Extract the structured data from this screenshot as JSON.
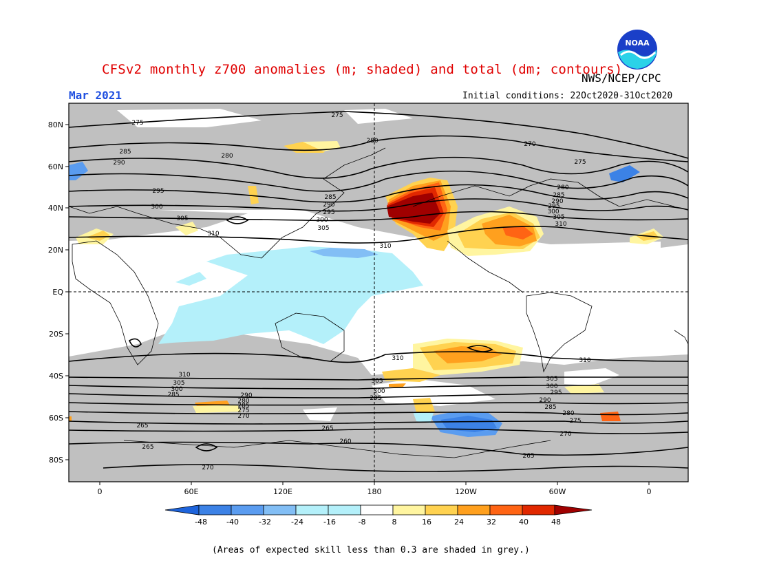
{
  "header": {
    "title": "CFSv2 monthly z700 anomalies (m; shaded) and total (dm; contours)",
    "agency": "NWS/NCEP/CPC",
    "period": "Mar 2021",
    "initial_conditions": "Initial conditions: 22Oct2020-31Oct2020",
    "logo_text": "NOAA"
  },
  "axes": {
    "lat_labels": [
      "80N",
      "60N",
      "40N",
      "20N",
      "EQ",
      "20S",
      "40S",
      "60S",
      "80S"
    ],
    "lon_labels": [
      "0",
      "60E",
      "120E",
      "180",
      "120W",
      "60W",
      "0"
    ]
  },
  "contour_labels": [
    "275",
    "280",
    "285",
    "290",
    "295",
    "300",
    "305",
    "310",
    "270",
    "265",
    "260"
  ],
  "colorbar": {
    "ticks": [
      "-48",
      "-40",
      "-32",
      "-24",
      "-16",
      "-8",
      "8",
      "16",
      "24",
      "32",
      "40",
      "48"
    ],
    "colors": [
      "#1e64dc",
      "#3c82e6",
      "#5a9cf0",
      "#82bef5",
      "#b4f0fa",
      "#ffffff",
      "#fff5a0",
      "#ffd250",
      "#ffa01e",
      "#ff6414",
      "#e12800",
      "#a00000"
    ],
    "skill_mask_color": "#c0c0c0"
  },
  "footnote": "(Areas of expected skill less than 0.3 are shaded in grey.)"
}
